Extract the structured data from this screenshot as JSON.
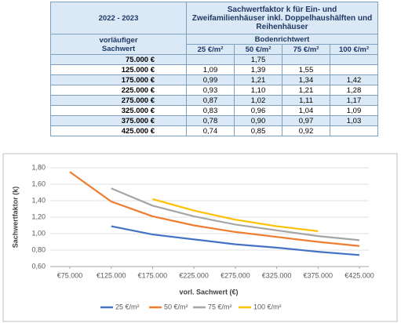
{
  "table": {
    "corner": "2022 - 2023",
    "title": "Sachwertfaktor k für Ein- und Zweifamilienhäuser inkl. Doppelhaushälften und Reihenhäuser",
    "row_header": "vorläufiger Sachwert",
    "group_header": "Bodenrichtwert",
    "columns": [
      "25 €/m²",
      "50 €/m²",
      "75 €/m²",
      "100 €/m²"
    ],
    "rows": [
      {
        "label": "75.000 €",
        "cells": [
          null,
          "1,75",
          null,
          null
        ]
      },
      {
        "label": "125.000 €",
        "cells": [
          "1,09",
          "1,39",
          "1,55",
          null
        ]
      },
      {
        "label": "175.000 €",
        "cells": [
          "0,99",
          "1,21",
          "1,34",
          "1,42"
        ]
      },
      {
        "label": "225.000 €",
        "cells": [
          "0,93",
          "1,10",
          "1,21",
          "1,28"
        ]
      },
      {
        "label": "275.000 €",
        "cells": [
          "0,87",
          "1,02",
          "1,11",
          "1,17"
        ]
      },
      {
        "label": "325.000 €",
        "cells": [
          "0,83",
          "0,96",
          "1,04",
          "1,09"
        ]
      },
      {
        "label": "375.000 €",
        "cells": [
          "0,78",
          "0,90",
          "0,97",
          "1,03"
        ]
      },
      {
        "label": "425.000 €",
        "cells": [
          "0,74",
          "0,85",
          "0,92",
          null
        ]
      }
    ]
  },
  "chart_data": {
    "type": "line",
    "x_label": "vorl. Sachwert (€)",
    "y_label": "Sachwertfaktor (k)",
    "x": [
      75000,
      125000,
      175000,
      225000,
      275000,
      325000,
      375000,
      425000
    ],
    "xlim": [
      75000,
      425000
    ],
    "xticks": [
      {
        "value": 75000,
        "label": "€75.000"
      },
      {
        "value": 125000,
        "label": "€125.000"
      },
      {
        "value": 175000,
        "label": "€175.000"
      },
      {
        "value": 225000,
        "label": "€225.000"
      },
      {
        "value": 275000,
        "label": "€275.000"
      },
      {
        "value": 325000,
        "label": "€325.000"
      },
      {
        "value": 375000,
        "label": "€375.000"
      },
      {
        "value": 425000,
        "label": "€425.000"
      }
    ],
    "ylim": [
      0.6,
      1.8
    ],
    "yticks": [
      {
        "value": 0.6,
        "label": "0,60"
      },
      {
        "value": 0.8,
        "label": "0,80"
      },
      {
        "value": 1.0,
        "label": "1,00"
      },
      {
        "value": 1.2,
        "label": "1,20"
      },
      {
        "value": 1.4,
        "label": "1,40"
      },
      {
        "value": 1.6,
        "label": "1,60"
      },
      {
        "value": 1.8,
        "label": "1,80"
      }
    ],
    "grid": true,
    "legend": "bottom",
    "series": [
      {
        "name": "25 €/m²",
        "color": "#4472c4",
        "values": [
          null,
          1.09,
          0.99,
          0.93,
          0.87,
          0.83,
          0.78,
          0.74
        ]
      },
      {
        "name": "50 €/m²",
        "color": "#ed7d31",
        "values": [
          1.75,
          1.39,
          1.21,
          1.1,
          1.02,
          0.96,
          0.9,
          0.85
        ]
      },
      {
        "name": "75 €/m²",
        "color": "#a5a5a5",
        "values": [
          null,
          1.55,
          1.34,
          1.21,
          1.11,
          1.04,
          0.97,
          0.92
        ]
      },
      {
        "name": "100 €/m²",
        "color": "#ffc000",
        "values": [
          null,
          null,
          1.42,
          1.28,
          1.17,
          1.09,
          1.03,
          null
        ]
      }
    ]
  }
}
